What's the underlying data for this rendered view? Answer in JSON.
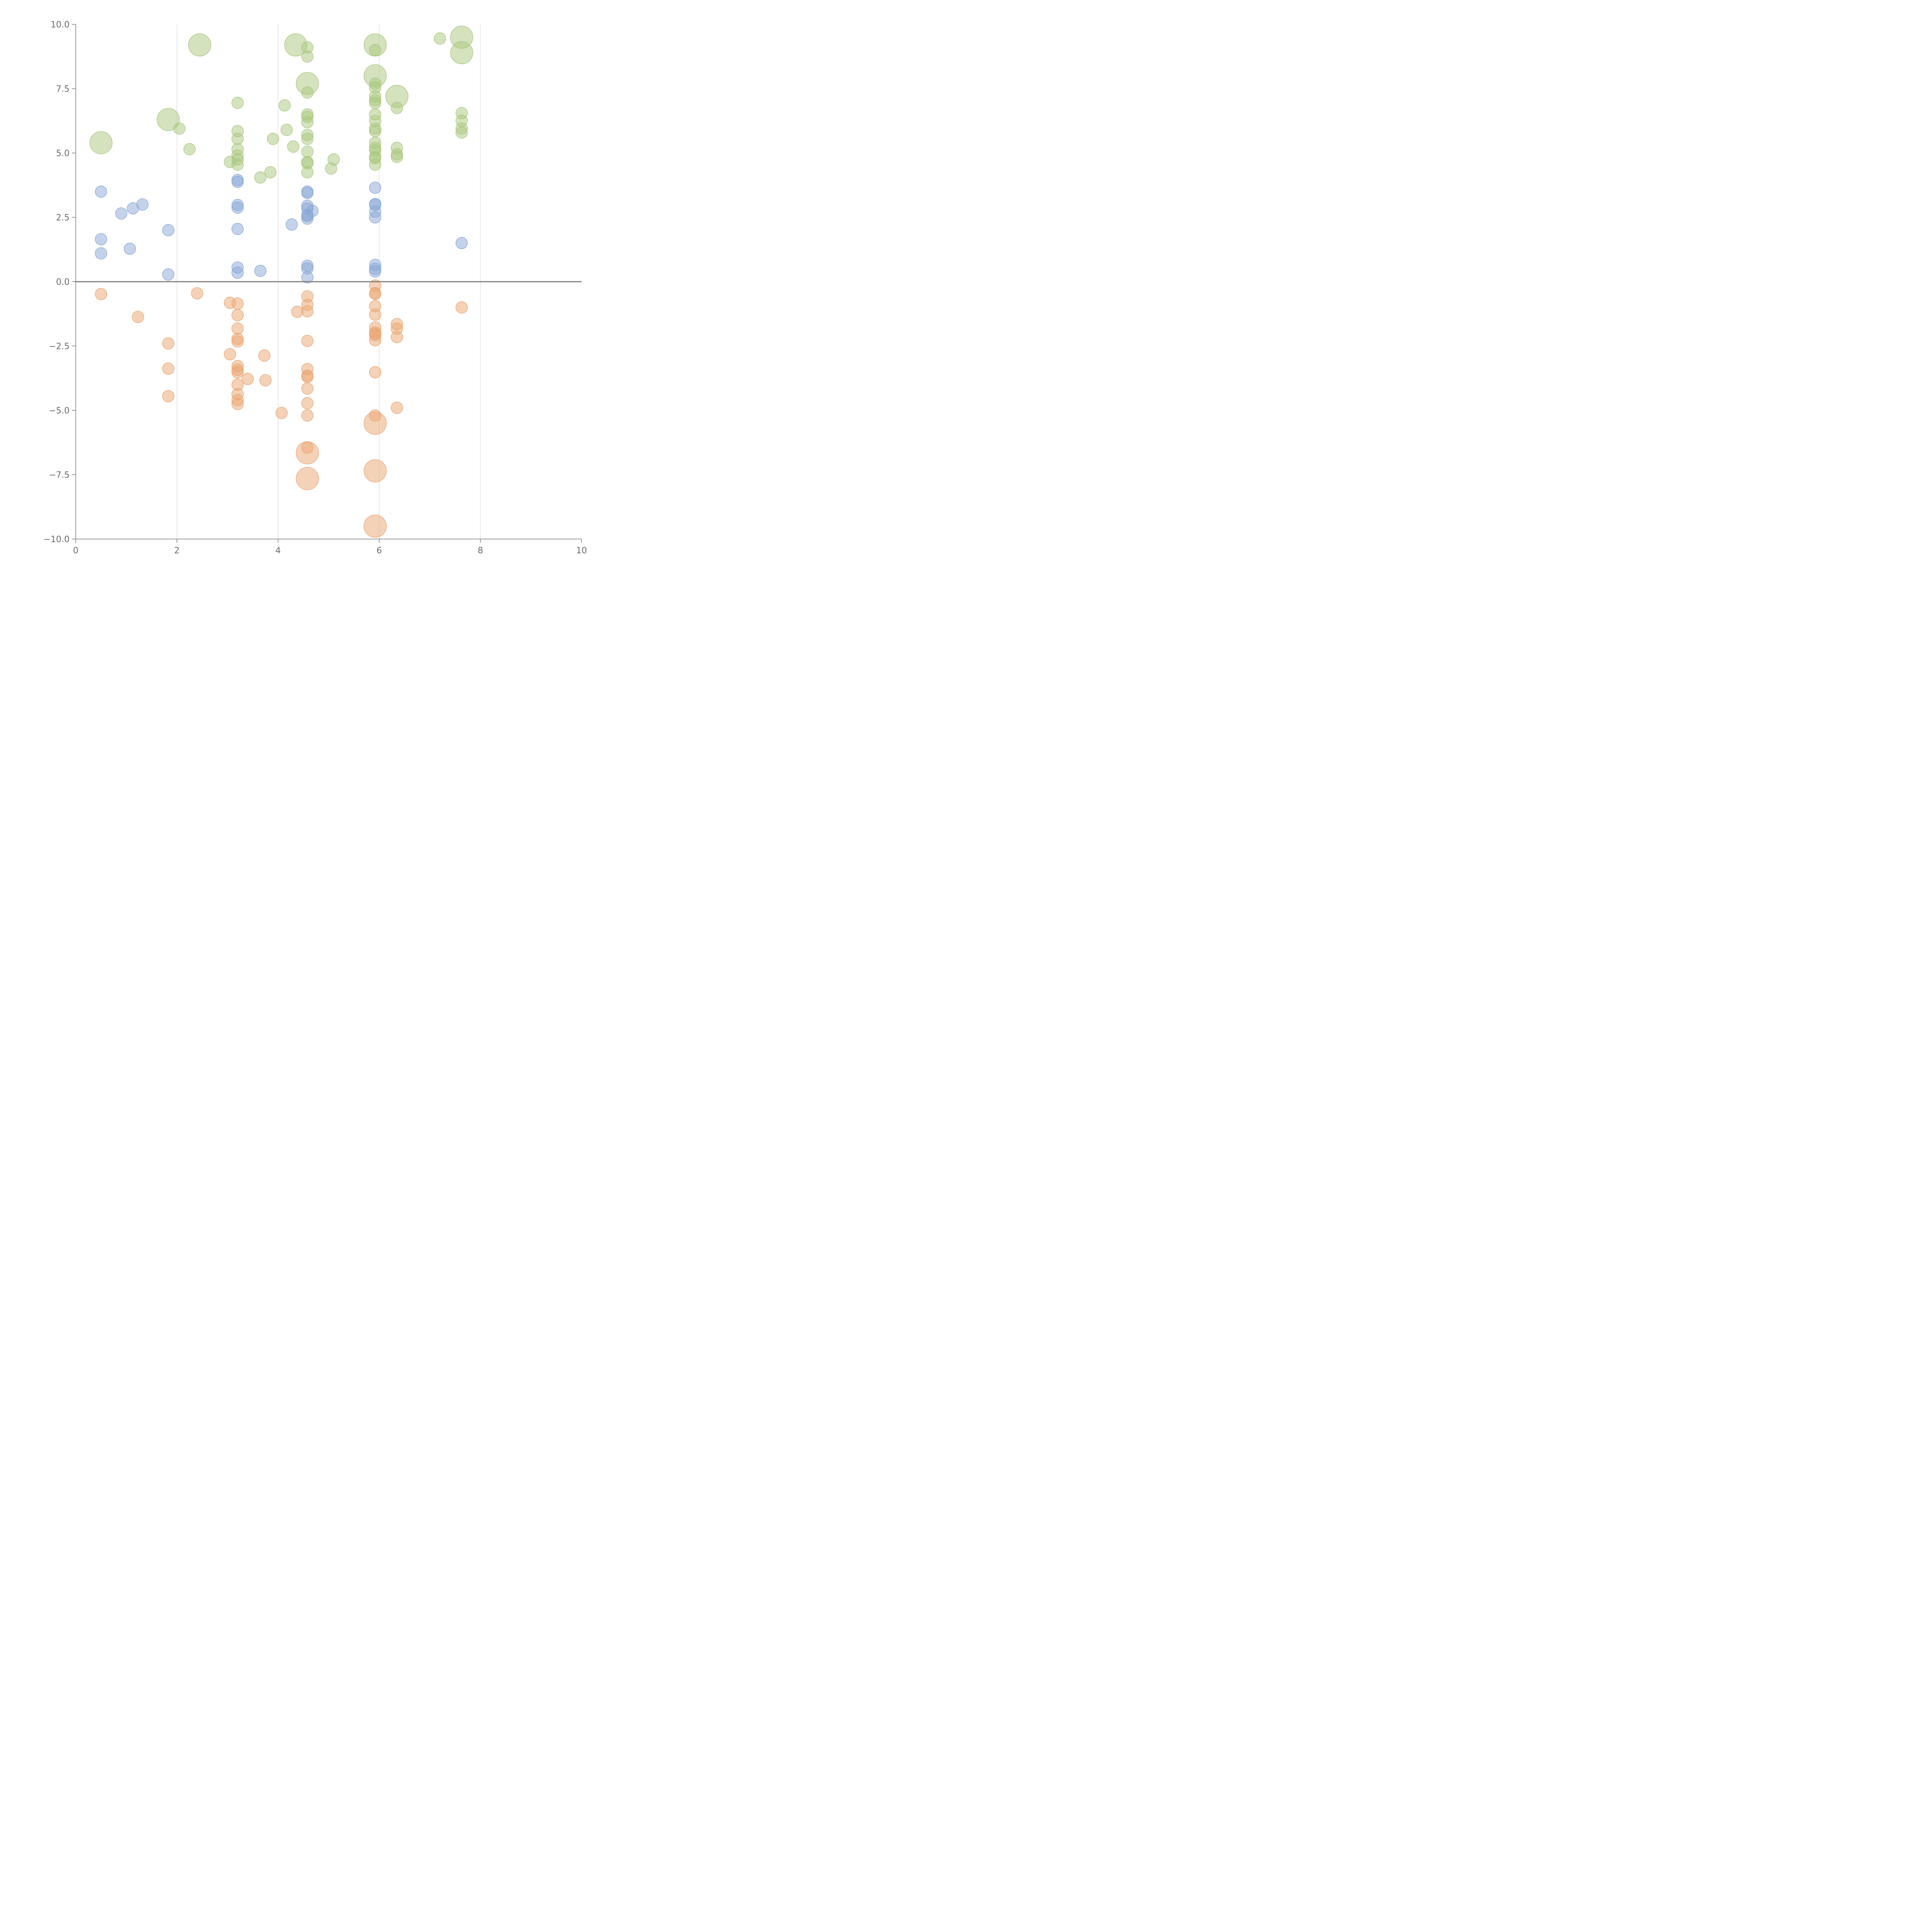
{
  "chart_data": {
    "type": "scatter",
    "title": "",
    "xlabel": "",
    "ylabel": "",
    "xlim": [
      0,
      10
    ],
    "ylim": [
      -10,
      10
    ],
    "x_ticks": [
      0,
      2,
      4,
      6,
      8,
      10
    ],
    "x_tick_labels": [
      "0",
      "2",
      "4",
      "6",
      "8",
      "10"
    ],
    "y_ticks": [
      10,
      7.5,
      5,
      2.5,
      0,
      -2.5,
      -5,
      -7.5,
      -10
    ],
    "y_tick_labels": [
      "10.0",
      "7.5",
      "5.0",
      "2.5",
      "0.0",
      "−2.5",
      "−5.0",
      "−7.5",
      "−10.0"
    ],
    "vertical_grid": [
      2,
      4,
      6,
      8
    ],
    "zero_line": 0,
    "legend": "none",
    "series": [
      {
        "color": "#a9c77e",
        "points": [
          [
            0.5,
            5.4,
            2
          ],
          [
            1.83,
            6.3,
            2
          ],
          [
            2.05,
            5.95,
            1
          ],
          [
            2.25,
            5.15,
            1
          ],
          [
            2.45,
            9.2,
            2
          ],
          [
            3.05,
            4.65,
            1
          ],
          [
            3.2,
            6.95,
            1
          ],
          [
            3.2,
            5.85,
            1
          ],
          [
            3.2,
            5.55,
            1
          ],
          [
            3.2,
            5.15,
            1
          ],
          [
            3.2,
            4.9,
            1
          ],
          [
            3.2,
            4.75,
            1
          ],
          [
            3.2,
            4.55,
            1
          ],
          [
            3.65,
            4.05,
            1
          ],
          [
            3.85,
            4.25,
            1
          ],
          [
            3.9,
            5.55,
            1
          ],
          [
            4.13,
            6.85,
            1
          ],
          [
            4.17,
            5.9,
            1
          ],
          [
            4.3,
            5.25,
            1
          ],
          [
            4.35,
            9.2,
            2
          ],
          [
            4.58,
            9.1,
            1
          ],
          [
            4.58,
            8.75,
            1
          ],
          [
            4.58,
            7.7,
            2
          ],
          [
            4.58,
            7.35,
            1
          ],
          [
            4.58,
            6.5,
            1
          ],
          [
            4.58,
            6.4,
            1
          ],
          [
            4.58,
            6.2,
            1
          ],
          [
            4.58,
            5.7,
            1
          ],
          [
            4.58,
            5.55,
            1
          ],
          [
            4.58,
            5.05,
            1
          ],
          [
            4.58,
            4.65,
            1
          ],
          [
            4.58,
            4.6,
            1
          ],
          [
            4.58,
            4.25,
            1
          ],
          [
            5.05,
            4.4,
            1
          ],
          [
            5.1,
            4.75,
            1
          ],
          [
            5.92,
            9.2,
            2
          ],
          [
            5.92,
            9.0,
            1
          ],
          [
            5.92,
            8.0,
            2
          ],
          [
            5.92,
            7.7,
            1
          ],
          [
            5.92,
            7.55,
            1
          ],
          [
            5.92,
            7.2,
            1
          ],
          [
            5.92,
            7.05,
            1
          ],
          [
            5.92,
            6.95,
            1
          ],
          [
            5.92,
            6.5,
            1
          ],
          [
            5.92,
            6.25,
            1
          ],
          [
            5.92,
            5.95,
            1
          ],
          [
            5.92,
            5.85,
            1
          ],
          [
            5.92,
            5.4,
            1
          ],
          [
            5.92,
            5.2,
            1
          ],
          [
            5.92,
            5.1,
            1
          ],
          [
            5.92,
            4.85,
            1
          ],
          [
            5.92,
            4.8,
            1
          ],
          [
            5.92,
            4.55,
            1
          ],
          [
            6.35,
            7.2,
            2
          ],
          [
            6.35,
            6.75,
            1
          ],
          [
            6.35,
            5.2,
            1
          ],
          [
            6.35,
            4.95,
            1
          ],
          [
            6.35,
            4.85,
            1
          ],
          [
            7.2,
            9.45,
            1
          ],
          [
            7.63,
            9.5,
            2
          ],
          [
            7.63,
            8.9,
            2
          ],
          [
            7.63,
            6.55,
            1
          ],
          [
            7.63,
            6.25,
            1
          ],
          [
            7.63,
            5.95,
            1
          ],
          [
            7.63,
            5.8,
            1
          ]
        ]
      },
      {
        "color": "#8aa8d6",
        "points": [
          [
            0.5,
            3.5,
            1
          ],
          [
            0.5,
            1.65,
            1
          ],
          [
            0.5,
            1.1,
            1
          ],
          [
            0.9,
            2.65,
            1
          ],
          [
            1.07,
            1.28,
            1
          ],
          [
            1.13,
            2.85,
            1
          ],
          [
            1.32,
            3.0,
            1
          ],
          [
            1.83,
            2.0,
            1
          ],
          [
            1.83,
            0.28,
            1
          ],
          [
            3.2,
            3.95,
            1
          ],
          [
            3.2,
            3.88,
            1
          ],
          [
            3.2,
            2.98,
            1
          ],
          [
            3.2,
            2.88,
            1
          ],
          [
            3.2,
            2.05,
            1
          ],
          [
            3.2,
            0.55,
            1
          ],
          [
            3.2,
            0.35,
            1
          ],
          [
            3.65,
            0.42,
            1
          ],
          [
            4.27,
            2.22,
            1
          ],
          [
            4.58,
            3.5,
            1
          ],
          [
            4.58,
            3.45,
            1
          ],
          [
            4.58,
            2.95,
            1
          ],
          [
            4.58,
            2.85,
            1
          ],
          [
            4.58,
            2.6,
            1
          ],
          [
            4.58,
            2.55,
            1
          ],
          [
            4.58,
            2.45,
            1
          ],
          [
            4.58,
            0.62,
            1
          ],
          [
            4.58,
            0.52,
            1
          ],
          [
            4.58,
            0.17,
            1
          ],
          [
            4.68,
            2.75,
            1
          ],
          [
            5.92,
            3.65,
            1
          ],
          [
            5.92,
            3.02,
            1
          ],
          [
            5.92,
            2.98,
            1
          ],
          [
            5.92,
            2.72,
            1
          ],
          [
            5.92,
            2.5,
            1
          ],
          [
            5.92,
            0.65,
            1
          ],
          [
            5.92,
            0.5,
            1
          ],
          [
            5.92,
            0.4,
            1
          ],
          [
            7.63,
            1.5,
            1
          ]
        ]
      },
      {
        "color": "#eaa571",
        "points": [
          [
            0.5,
            -0.48,
            1
          ],
          [
            1.23,
            -1.37,
            1
          ],
          [
            1.83,
            -2.4,
            1
          ],
          [
            1.83,
            -3.38,
            1
          ],
          [
            1.83,
            -4.45,
            1
          ],
          [
            2.4,
            -0.45,
            1
          ],
          [
            3.05,
            -0.82,
            1
          ],
          [
            3.05,
            -2.82,
            1
          ],
          [
            3.2,
            -0.85,
            1
          ],
          [
            3.2,
            -1.3,
            1
          ],
          [
            3.2,
            -1.82,
            1
          ],
          [
            3.2,
            -2.22,
            1
          ],
          [
            3.2,
            -2.32,
            1
          ],
          [
            3.2,
            -3.28,
            1
          ],
          [
            3.2,
            -3.42,
            1
          ],
          [
            3.2,
            -3.52,
            1
          ],
          [
            3.2,
            -4.0,
            1
          ],
          [
            3.2,
            -4.37,
            1
          ],
          [
            3.2,
            -4.6,
            1
          ],
          [
            3.2,
            -4.75,
            1
          ],
          [
            3.4,
            -3.78,
            1
          ],
          [
            3.73,
            -2.87,
            1
          ],
          [
            3.75,
            -3.83,
            1
          ],
          [
            4.07,
            -5.1,
            1
          ],
          [
            4.38,
            -1.17,
            1
          ],
          [
            4.58,
            -0.57,
            1
          ],
          [
            4.58,
            -0.9,
            1
          ],
          [
            4.58,
            -1.15,
            1
          ],
          [
            4.58,
            -2.3,
            1
          ],
          [
            4.58,
            -3.4,
            1
          ],
          [
            4.58,
            -3.65,
            1
          ],
          [
            4.58,
            -3.7,
            1
          ],
          [
            4.58,
            -4.15,
            1
          ],
          [
            4.58,
            -4.72,
            1
          ],
          [
            4.58,
            -5.2,
            1
          ],
          [
            4.58,
            -6.45,
            1
          ],
          [
            4.58,
            -6.65,
            2
          ],
          [
            4.58,
            -7.65,
            2
          ],
          [
            5.92,
            -0.15,
            1
          ],
          [
            5.92,
            -0.45,
            1
          ],
          [
            5.92,
            -0.47,
            1
          ],
          [
            5.92,
            -0.95,
            1
          ],
          [
            5.92,
            -1.28,
            1
          ],
          [
            5.92,
            -1.78,
            1
          ],
          [
            5.92,
            -1.97,
            1
          ],
          [
            5.92,
            -2.02,
            1
          ],
          [
            5.92,
            -2.08,
            1
          ],
          [
            5.92,
            -2.27,
            1
          ],
          [
            5.92,
            -3.52,
            1
          ],
          [
            5.92,
            -5.2,
            1
          ],
          [
            5.92,
            -5.5,
            2
          ],
          [
            5.92,
            -7.35,
            2
          ],
          [
            5.92,
            -9.5,
            2
          ],
          [
            6.35,
            -1.65,
            1
          ],
          [
            6.35,
            -1.82,
            1
          ],
          [
            6.35,
            -2.15,
            1
          ],
          [
            6.35,
            -4.9,
            1
          ],
          [
            7.63,
            -1.0,
            1
          ]
        ]
      }
    ]
  }
}
